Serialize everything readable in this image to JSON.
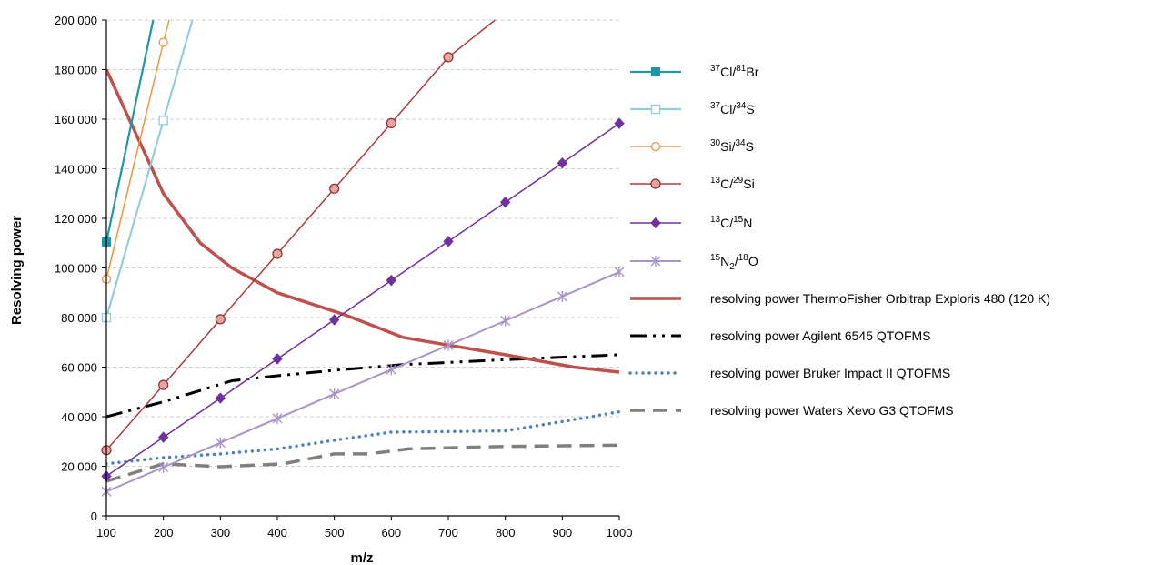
{
  "chart_data": {
    "type": "line",
    "xlabel": "m/z",
    "ylabel": "Resolving power",
    "xlim": [
      100,
      1000
    ],
    "ylim": [
      0,
      200000
    ],
    "x_ticks": [
      "100",
      "200",
      "300",
      "400",
      "500",
      "600",
      "700",
      "800",
      "900",
      "1000"
    ],
    "y_ticks": [
      "0",
      "20 000",
      "40 000",
      "60 000",
      "80 000",
      "100 000",
      "120 000",
      "140 000",
      "160 000",
      "180 000",
      "200 000"
    ],
    "grid": "horizontal dashed",
    "legend_position": "right",
    "series": [
      {
        "key": "cl_br",
        "legend": {
          "sup1": "37",
          "el1": "Cl/",
          "sup2": "81",
          "el2": "Br"
        },
        "color": "#1f97a8",
        "marker": "square-filled",
        "width": 2.2,
        "dash": "",
        "x": [
          100,
          182
        ],
        "y": [
          110500,
          200000
        ],
        "marker_x": [
          100
        ],
        "marker_y": [
          110500
        ]
      },
      {
        "key": "cl_s",
        "legend": {
          "sup1": "37",
          "el1": "Cl/",
          "sup2": "34",
          "el2": "S"
        },
        "color": "#92cddc",
        "marker": "square-open",
        "width": 2.2,
        "dash": "",
        "x": [
          100,
          200,
          251
        ],
        "y": [
          80000,
          159500,
          200000
        ],
        "marker_x": [
          100,
          200
        ],
        "marker_y": [
          80000,
          159500
        ]
      },
      {
        "key": "si_s",
        "legend": {
          "sup1": "30",
          "el1": "Si/",
          "sup2": "34",
          "el2": "S"
        },
        "color": "#f0933f",
        "marker": "circle-open",
        "width": 1.5,
        "dash": "",
        "x": [
          100,
          200,
          210
        ],
        "y": [
          95500,
          191000,
          200000
        ],
        "marker_x": [
          100,
          200
        ],
        "marker_y": [
          95500,
          191000
        ]
      },
      {
        "key": "c_si",
        "legend": {
          "sup1": "13",
          "el1": "C/",
          "sup2": "29",
          "el2": "Si"
        },
        "color": "#b03a3a",
        "marker": "circle-filled-pink",
        "width": 1.5,
        "dash": "",
        "x": [
          100,
          200,
          300,
          400,
          500,
          600,
          700,
          782
        ],
        "y": [
          26500,
          52800,
          79300,
          105700,
          132000,
          158400,
          185000,
          200000
        ],
        "marker_x": [
          100,
          200,
          300,
          400,
          500,
          600,
          700
        ],
        "marker_y": [
          26500,
          52800,
          79300,
          105700,
          132000,
          158400,
          185000
        ]
      },
      {
        "key": "c_n",
        "legend": {
          "sup1": "13",
          "el1": "C/",
          "sup2": "15",
          "el2": "N"
        },
        "color": "#7030a0",
        "marker": "diamond",
        "width": 1.5,
        "dash": "",
        "x": [
          100,
          200,
          300,
          400,
          500,
          600,
          700,
          800,
          900,
          1000
        ],
        "y": [
          16000,
          31700,
          47500,
          63300,
          79100,
          95000,
          110700,
          126500,
          142300,
          158300
        ],
        "marker_x": [
          100,
          200,
          300,
          400,
          500,
          600,
          700,
          800,
          900,
          1000
        ],
        "marker_y": [
          16000,
          31700,
          47500,
          63300,
          79100,
          95000,
          110700,
          126500,
          142300,
          158300
        ]
      },
      {
        "key": "n2_o",
        "legend": {
          "sup1": "15",
          "el1": "N",
          "sub": "2",
          "el1b": "/",
          "sup2": "18",
          "el2": "O"
        },
        "color": "#a994c8",
        "marker": "asterisk",
        "width": 2,
        "dash": "",
        "x": [
          100,
          200,
          300,
          400,
          500,
          600,
          700,
          800,
          900,
          1000
        ],
        "y": [
          9800,
          19600,
          29500,
          39300,
          49200,
          59000,
          68800,
          78700,
          88500,
          98400
        ],
        "marker_x": [
          100,
          200,
          300,
          400,
          500,
          600,
          700,
          800,
          900,
          1000
        ],
        "marker_y": [
          9800,
          19600,
          29500,
          39300,
          49200,
          59000,
          68800,
          78700,
          88500,
          98400
        ]
      },
      {
        "key": "orbitrap",
        "legend": {
          "text": "resolving power ThermoFisher Orbitrap Exploris 480 (120 K)"
        },
        "color": "#c0504d",
        "marker": "none",
        "width": 3.5,
        "dash": "",
        "x": [
          100,
          200,
          265,
          320,
          400,
          520,
          620,
          800,
          920,
          1000
        ],
        "y": [
          180000,
          130000,
          110000,
          100000,
          90000,
          81000,
          72000,
          65000,
          60000,
          58000
        ]
      },
      {
        "key": "agilent",
        "legend": {
          "text": "resolving power Agilent 6545 QTOFMS"
        },
        "color": "#000000",
        "marker": "none",
        "width": 3,
        "dash": "18 7 3 7 3 7",
        "x": [
          100,
          200,
          320,
          400,
          500,
          620,
          800,
          1000
        ],
        "y": [
          40000,
          46000,
          54500,
          56500,
          58700,
          61000,
          63000,
          65000
        ]
      },
      {
        "key": "bruker",
        "legend": {
          "text": "resolving power Bruker Impact II QTOFMS"
        },
        "color": "#4f81bd",
        "marker": "none",
        "width": 3.5,
        "dash": "0 7",
        "x": [
          100,
          200,
          300,
          400,
          500,
          600,
          700,
          800,
          900,
          1000
        ],
        "y": [
          21000,
          23500,
          25000,
          27000,
          30500,
          33800,
          34000,
          34300,
          38000,
          42000
        ]
      },
      {
        "key": "waters",
        "legend": {
          "text": "resolving power Waters Xevo G3 QTOFMS"
        },
        "color": "#7f7f7f",
        "marker": "none",
        "width": 3.5,
        "dash": "16 9",
        "x": [
          100,
          200,
          300,
          410,
          500,
          560,
          630,
          800,
          1000
        ],
        "y": [
          14000,
          21000,
          19800,
          21000,
          25000,
          25000,
          27000,
          28000,
          28500
        ]
      }
    ]
  }
}
